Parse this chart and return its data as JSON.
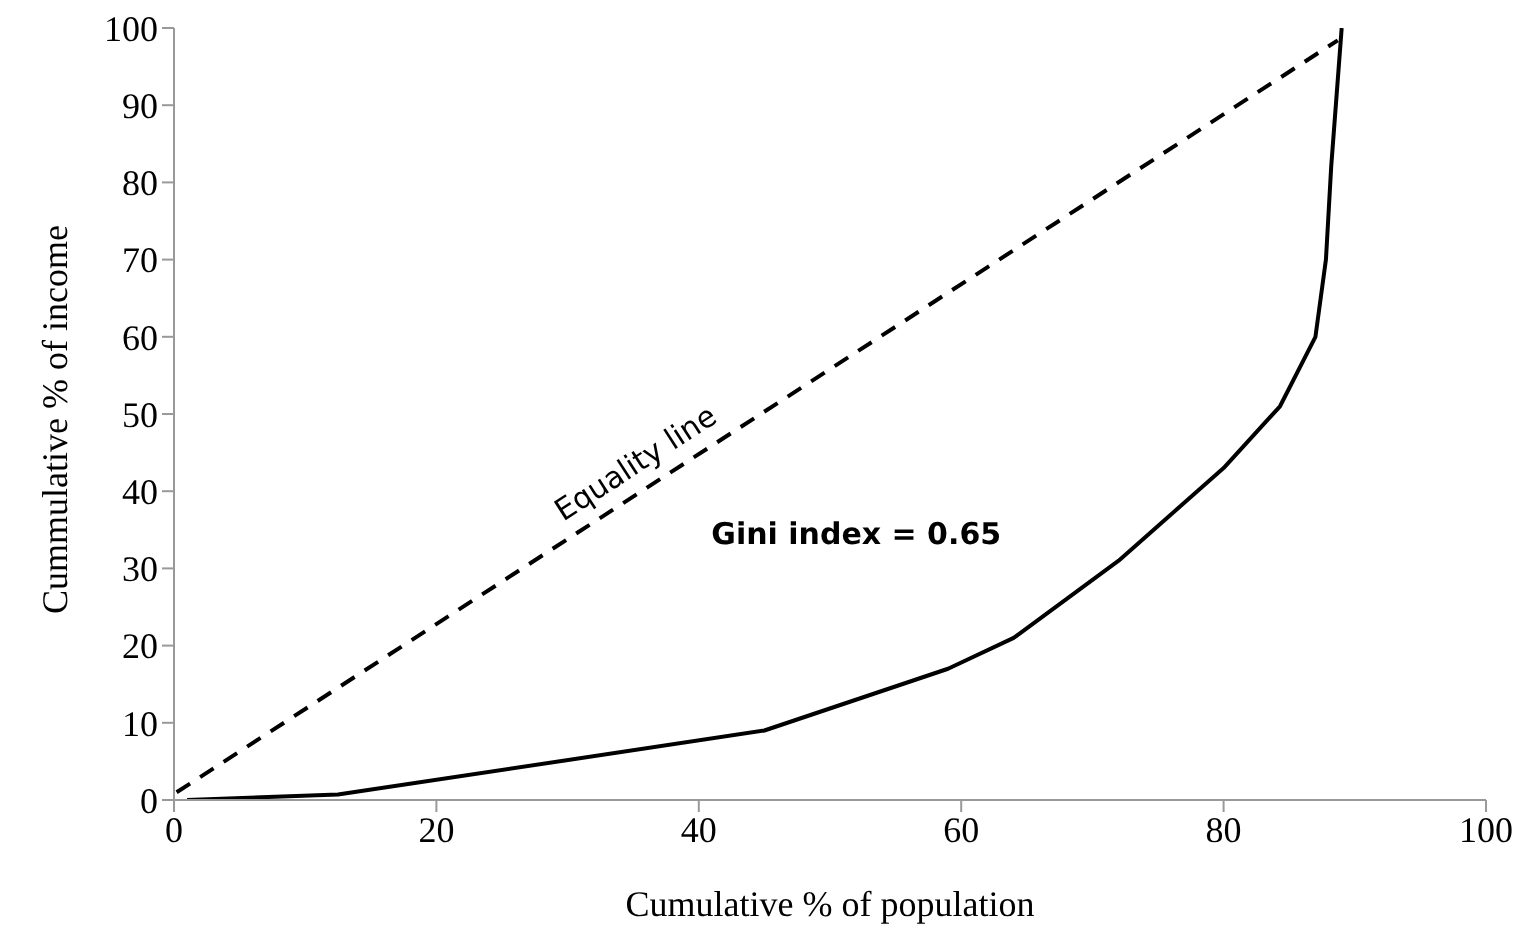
{
  "chart_data": {
    "type": "line",
    "xlabel": "Cumulative % of population",
    "ylabel": "Cummulative % of income",
    "xlim": [
      0,
      100
    ],
    "xticks": [
      0,
      20,
      40,
      60,
      80,
      100
    ],
    "ylim": [
      0,
      100
    ],
    "yticks": [
      0,
      10,
      20,
      30,
      40,
      50,
      60,
      70,
      80,
      90,
      100
    ],
    "grid": false,
    "legend": false,
    "series": [
      {
        "color": "#000000",
        "line_style": "solid",
        "x": [
          1,
          12.5,
          45,
          59,
          64,
          72,
          80,
          84.3,
          87,
          87.8,
          88.2,
          89
        ],
        "values": [
          0,
          0.7,
          9,
          17,
          21,
          31,
          43,
          51,
          60,
          70,
          82,
          100
        ]
      },
      {
        "name": "Equality line",
        "color": "#000000",
        "line_style": "dashed",
        "x": [
          0.2,
          88.7
        ],
        "values": [
          1,
          98.4
        ]
      }
    ],
    "annotations": [
      "Gini index = 0.65"
    ]
  }
}
